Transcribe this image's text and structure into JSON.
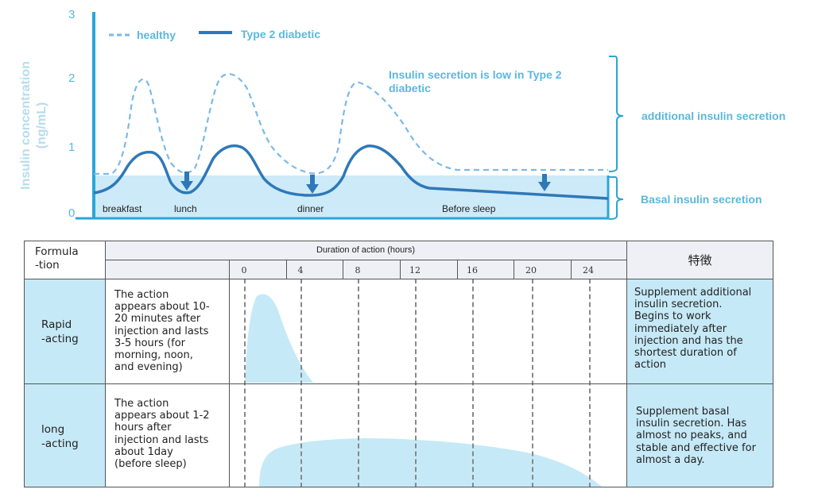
{
  "top_chart": {
    "ylabel": "Insulin concentration\n(ng/mL)",
    "y_ticks": [
      "0",
      "1",
      "2",
      "3"
    ],
    "legend": {
      "healthy": "healthy",
      "diabetic": "Type 2 diabetic"
    },
    "annotation_low": "Insulin secretion is low in Type 2\ndiabetic",
    "bracket_additional": "additional insulin secretion",
    "bracket_basal": "Basal insulin secretion",
    "meals": [
      "breakfast",
      "lunch",
      "dinner",
      "Before sleep"
    ],
    "colors": {
      "line": "#2e78b8",
      "text": "#5bb8de",
      "fill": "#cdeaf8",
      "ylabel": "#b5dcef"
    }
  },
  "table": {
    "col_formulation": "Formula\n-tion",
    "duration_header": "Duration of action (hours)",
    "hour_ticks": [
      "0",
      "4",
      "8",
      "12",
      "16",
      "20",
      "24"
    ],
    "col_feature": "特徴",
    "rows": [
      {
        "name": "Rapid\n-acting",
        "description": "The action\nappears about 10-\n20 minutes after\ninjection and lasts\n3-5 hours (for\nmorning, noon,\nand evening)",
        "feature": "Supplement additional\ninsulin secretion.\nBegins to work\nimmediately after\ninjection and has the\nshortest duration of\naction"
      },
      {
        "name": "long\n-acting",
        "description": "The action\nappears about 1-2\nhours after\ninjection and lasts\nabout 1day\n(before sleep)",
        "feature": "Supplement basal\ninsulin secretion. Has\nalmost no peaks, and\nstable and effective for\nalmost a day."
      }
    ],
    "colors": {
      "blue_cell": "#c6e9f7",
      "header": "#eef0f6",
      "curve": "#c6e9f7"
    }
  }
}
